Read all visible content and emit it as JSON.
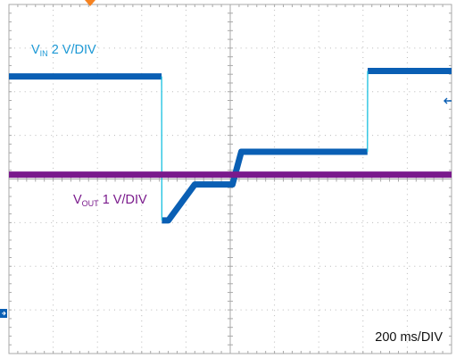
{
  "chart_data": {
    "type": "line",
    "title": "",
    "xlabel": "",
    "ylabel": "",
    "x_unit": "ms",
    "xlim": [
      0,
      2000
    ],
    "ylim_divisions": [
      -4,
      4
    ],
    "grid": true,
    "series": [
      {
        "name": "VIN",
        "label_main": "V",
        "label_sub": "IN",
        "label_scale": "2 V/DIV",
        "color": "#0a5fb4",
        "scale_v_per_div": 2,
        "ground_div": -2.3,
        "x": [
          0,
          690,
          691,
          720,
          840,
          860,
          1010,
          1050,
          1620,
          1621,
          2000
        ],
        "y": [
          9.3,
          9.3,
          2.7,
          2.7,
          4.35,
          4.35,
          4.35,
          5.85,
          5.85,
          9.55,
          9.55
        ]
      },
      {
        "name": "VOUT",
        "label_main": "V",
        "label_sub": "OUT",
        "label_scale": "1 V/DIV",
        "color": "#7a1a8c",
        "scale_v_per_div": 1,
        "ground_div": 0.1,
        "x": [
          0,
          2000
        ],
        "y": [
          0,
          0
        ]
      }
    ],
    "annotations": {
      "timebase": "200 ms/DIV"
    }
  },
  "colors": {
    "grid_border": "#a9a9a9",
    "grid_dots": "#b8b8b8",
    "trigger_marker": "#f58220"
  }
}
